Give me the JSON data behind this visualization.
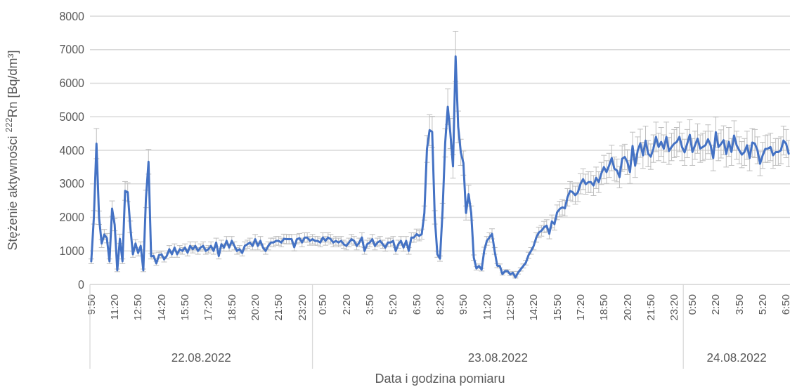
{
  "chart_data": {
    "type": "line",
    "ylabel": "Stężenie aktywności $^{222}$Rn [Bq/dm³]",
    "xlabel": "Data i godzina pomiaru",
    "annotations": [
      "22.08.2022",
      "23.08.2022",
      "24.08.2022"
    ],
    "categories": [
      "9:50",
      null,
      null,
      null,
      null,
      null,
      null,
      null,
      null,
      "11:20",
      null,
      null,
      null,
      null,
      null,
      null,
      null,
      null,
      "12:50",
      null,
      null,
      null,
      null,
      null,
      null,
      null,
      null,
      "14:20",
      null,
      null,
      null,
      null,
      null,
      null,
      null,
      null,
      "15:50",
      null,
      null,
      null,
      null,
      null,
      null,
      null,
      null,
      "17:20",
      null,
      null,
      null,
      null,
      null,
      null,
      null,
      null,
      "18:50",
      null,
      null,
      null,
      null,
      null,
      null,
      null,
      null,
      "20:20",
      null,
      null,
      null,
      null,
      null,
      null,
      null,
      null,
      "21:50",
      null,
      null,
      null,
      null,
      null,
      null,
      null,
      null,
      "23:20",
      null,
      null,
      null,
      null,
      null,
      null,
      null,
      "0:50",
      null,
      null,
      null,
      null,
      null,
      null,
      null,
      null,
      "2:20",
      null,
      null,
      null,
      null,
      null,
      null,
      null,
      null,
      "3:50",
      null,
      null,
      null,
      null,
      null,
      null,
      null,
      null,
      "5:20",
      null,
      null,
      null,
      null,
      null,
      null,
      null,
      null,
      "6:50",
      null,
      null,
      null,
      null,
      null,
      null,
      null,
      null,
      "8:20",
      null,
      null,
      null,
      null,
      null,
      null,
      null,
      null,
      "9:50",
      null,
      null,
      null,
      null,
      null,
      null,
      null,
      null,
      "11:20",
      null,
      null,
      null,
      null,
      null,
      null,
      null,
      null,
      "12:50",
      null,
      null,
      null,
      null,
      null,
      null,
      null,
      null,
      "14:20",
      null,
      null,
      null,
      null,
      null,
      null,
      null,
      null,
      "15:50",
      null,
      null,
      null,
      null,
      null,
      null,
      null,
      null,
      "17:20",
      null,
      null,
      null,
      null,
      null,
      null,
      null,
      null,
      "18:50",
      null,
      null,
      null,
      null,
      null,
      null,
      null,
      null,
      "20:20",
      null,
      null,
      null,
      null,
      null,
      null,
      null,
      null,
      "21:50",
      null,
      null,
      null,
      null,
      null,
      null,
      null,
      null,
      "23:20",
      null,
      null,
      null,
      null,
      null,
      null,
      "0:50",
      null,
      null,
      null,
      null,
      null,
      null,
      null,
      null,
      "2:20",
      null,
      null,
      null,
      null,
      null,
      null,
      null,
      null,
      "3:50",
      null,
      null,
      null,
      null,
      null,
      null,
      null,
      null,
      "5:20",
      null,
      null,
      null,
      null,
      null,
      null,
      null,
      null,
      "6:50",
      null
    ],
    "series": [
      {
        "color": "#4472c4",
        "values": [
          690,
          2000,
          4200,
          1990,
          1220,
          1490,
          1380,
          690,
          2260,
          1780,
          420,
          1360,
          690,
          2790,
          2750,
          1720,
          900,
          1220,
          940,
          1150,
          420,
          2550,
          3660,
          840,
          850,
          630,
          870,
          900,
          750,
          850,
          1050,
          900,
          1100,
          900,
          1050,
          1000,
          1100,
          950,
          1150,
          1050,
          1150,
          1000,
          1100,
          1150,
          1000,
          1050,
          1150,
          1000,
          1250,
          850,
          1200,
          1100,
          1300,
          1100,
          1300,
          1150,
          1000,
          1050,
          940,
          1150,
          1200,
          1250,
          1150,
          1350,
          1150,
          1300,
          1100,
          1000,
          1150,
          1250,
          1250,
          1300,
          1300,
          1250,
          1360,
          1350,
          1350,
          1350,
          1110,
          1350,
          1380,
          1250,
          1400,
          1400,
          1300,
          1350,
          1300,
          1300,
          1250,
          1400,
          1300,
          1400,
          1350,
          1250,
          1300,
          1250,
          1300,
          1200,
          1150,
          1250,
          1350,
          1300,
          1150,
          1250,
          1400,
          1000,
          1200,
          1250,
          1350,
          1150,
          1250,
          1300,
          1200,
          1100,
          1250,
          1250,
          1300,
          1000,
          1200,
          1300,
          1100,
          1300,
          1000,
          1400,
          1400,
          1500,
          1450,
          1500,
          2130,
          4040,
          4600,
          4550,
          2000,
          900,
          770,
          2200,
          4220,
          5300,
          4500,
          3520,
          6800,
          4700,
          3940,
          3620,
          2130,
          2690,
          2130,
          800,
          480,
          550,
          440,
          1010,
          1300,
          1400,
          1510,
          1000,
          560,
          550,
          310,
          400,
          400,
          300,
          350,
          210,
          350,
          450,
          550,
          650,
          870,
          1000,
          1150,
          1400,
          1550,
          1600,
          1710,
          1750,
          1510,
          1880,
          1800,
          2150,
          2250,
          2300,
          2270,
          2600,
          2790,
          2750,
          2660,
          2750,
          3000,
          3140,
          2990,
          3050,
          3050,
          2950,
          3180,
          3050,
          3310,
          3500,
          3350,
          3550,
          3770,
          3450,
          3400,
          3200,
          3750,
          3800,
          3650,
          3350,
          4130,
          3540,
          4000,
          4210,
          3850,
          4290,
          3900,
          3810,
          4050,
          4400,
          4100,
          4250,
          4050,
          4400,
          3980,
          4100,
          4200,
          4250,
          4400,
          4100,
          3940,
          4200,
          4460,
          3950,
          4150,
          4350,
          4050,
          4100,
          4150,
          4330,
          4150,
          3770,
          4540,
          4100,
          4190,
          4300,
          3890,
          4250,
          3950,
          4440,
          4150,
          4000,
          3870,
          3950,
          4150,
          3770,
          4230,
          4200,
          4000,
          3600,
          3850,
          4040,
          4050,
          4100,
          3850,
          3950,
          3950,
          4000,
          4290,
          4200,
          3900
        ],
        "errors": [
          70,
          200,
          450,
          200,
          120,
          150,
          140,
          70,
          230,
          180,
          40,
          140,
          70,
          280,
          280,
          170,
          90,
          120,
          90,
          120,
          40,
          260,
          370,
          80,
          90,
          60,
          90,
          90,
          80,
          90,
          110,
          90,
          110,
          90,
          110,
          100,
          110,
          100,
          120,
          110,
          120,
          100,
          110,
          120,
          100,
          110,
          120,
          100,
          130,
          90,
          120,
          110,
          130,
          110,
          130,
          120,
          100,
          110,
          90,
          120,
          120,
          130,
          120,
          140,
          120,
          130,
          110,
          100,
          120,
          130,
          130,
          130,
          130,
          130,
          140,
          140,
          140,
          140,
          110,
          140,
          140,
          130,
          140,
          140,
          130,
          140,
          130,
          130,
          130,
          140,
          130,
          140,
          140,
          130,
          130,
          130,
          130,
          120,
          120,
          130,
          140,
          130,
          120,
          130,
          140,
          100,
          120,
          130,
          140,
          120,
          130,
          130,
          120,
          110,
          130,
          130,
          130,
          100,
          120,
          130,
          110,
          130,
          100,
          140,
          140,
          150,
          150,
          150,
          210,
          400,
          460,
          460,
          200,
          90,
          80,
          220,
          420,
          530,
          450,
          350,
          750,
          470,
          390,
          360,
          210,
          270,
          210,
          80,
          50,
          60,
          40,
          100,
          130,
          140,
          150,
          100,
          60,
          60,
          30,
          40,
          40,
          30,
          40,
          20,
          40,
          50,
          60,
          70,
          90,
          100,
          120,
          140,
          160,
          160,
          170,
          180,
          150,
          190,
          180,
          220,
          230,
          230,
          230,
          260,
          280,
          280,
          270,
          280,
          300,
          310,
          300,
          310,
          310,
          300,
          320,
          310,
          330,
          350,
          340,
          360,
          380,
          350,
          340,
          320,
          380,
          380,
          370,
          340,
          410,
          350,
          400,
          420,
          390,
          430,
          390,
          380,
          410,
          440,
          410,
          430,
          410,
          440,
          400,
          410,
          420,
          430,
          440,
          410,
          390,
          420,
          450,
          400,
          420,
          440,
          410,
          410,
          420,
          430,
          420,
          380,
          450,
          410,
          420,
          430,
          390,
          430,
          400,
          440,
          420,
          400,
          390,
          400,
          420,
          380,
          420,
          420,
          400,
          360,
          390,
          400,
          410,
          410,
          390,
          400,
          400,
          400,
          430,
          420,
          390
        ]
      }
    ],
    "ylim": [
      0,
      8000
    ],
    "yticks": [
      0,
      1000,
      2000,
      3000,
      4000,
      5000,
      6000,
      7000,
      8000
    ],
    "grid": "y",
    "marker": "none",
    "line_style": "solid"
  }
}
